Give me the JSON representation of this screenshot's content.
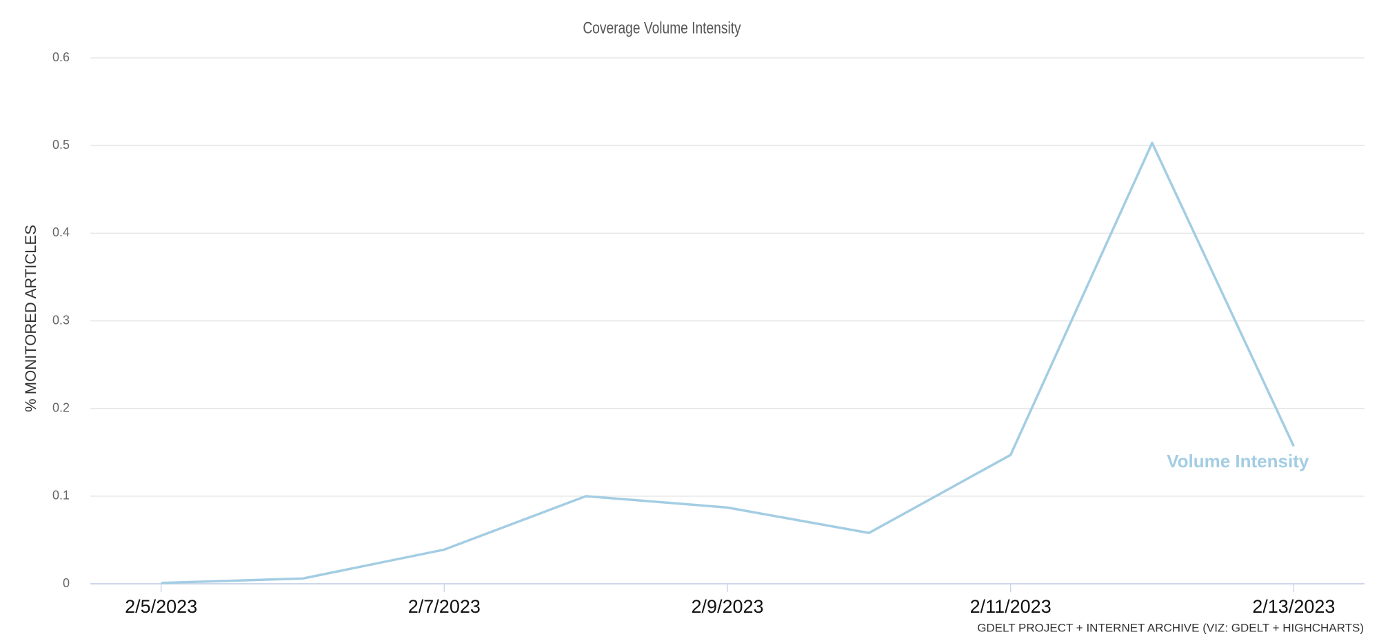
{
  "chart_data": {
    "type": "line",
    "title": "Coverage Volume Intensity",
    "y_label": "% MONITORED ARTICLES",
    "credit": "GDELT PROJECT + INTERNET ARCHIVE (VIZ: GDELT + HIGHCHARTS)",
    "categories": [
      "2/5/2023",
      null,
      "2/7/2023",
      null,
      "2/9/2023",
      null,
      "2/11/2023",
      null,
      "2/13/2023"
    ],
    "series": [
      {
        "name": "Volume Intensity",
        "color": "#a3cde3",
        "values": [
          0.001,
          0.006,
          0.039,
          0.1,
          0.087,
          0.058,
          0.147,
          0.503,
          0.157
        ]
      }
    ],
    "ylim": [
      0,
      0.6
    ],
    "yticks": [
      0,
      0.1,
      0.2,
      0.3,
      0.4,
      0.5,
      0.6
    ],
    "grid": true
  }
}
